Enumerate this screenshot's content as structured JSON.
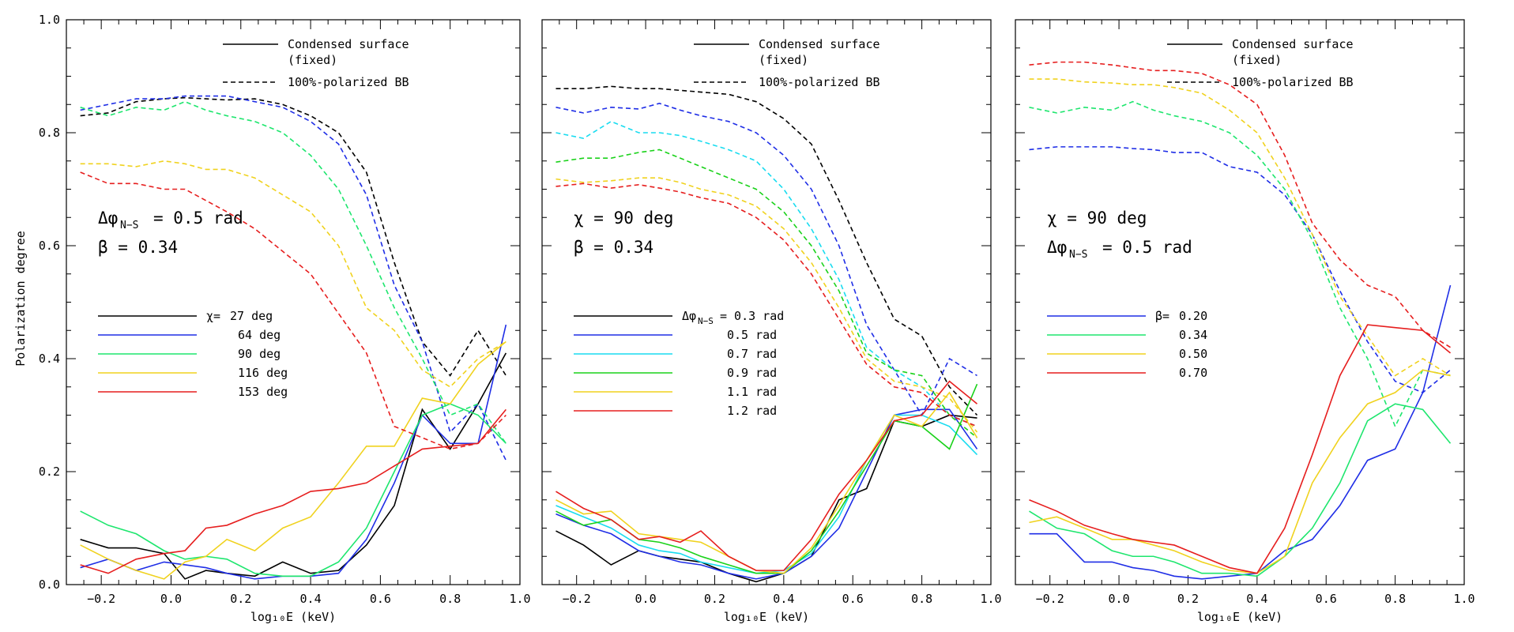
{
  "ylabel": "Polarization degree",
  "colors": {
    "black": "#000000",
    "blue": "#1f2ee6",
    "cyan": "#19dcf0",
    "green": "#1ee66e",
    "green2": "#1ad21a",
    "yellow": "#f0d21e",
    "red": "#e61e1e"
  },
  "chart_data": [
    {
      "type": "line",
      "panel": 1,
      "xlabel": "log₁₀E (keV)",
      "ylabel": "Polarization degree",
      "xlim": [
        -0.3,
        1.0
      ],
      "ylim": [
        0.0,
        1.0
      ],
      "xticks": [
        "−0.2",
        "0.0",
        "0.2",
        "0.4",
        "0.6",
        "0.8",
        "1.0"
      ],
      "yticks": [
        "0.0",
        "0.2",
        "0.4",
        "0.6",
        "0.8",
        "1.0"
      ],
      "legend_top": [
        "Condensed surface",
        "(fixed)",
        "100%-polarized BB"
      ],
      "annotations": [
        "Δφ",
        "N−S",
        "=  0.5 rad",
        "β =  0.34"
      ],
      "legend_prefix": "χ=",
      "legend": [
        "27 deg",
        "64 deg",
        "90 deg",
        "116 deg",
        "153 deg"
      ],
      "x": [
        -0.26,
        -0.18,
        -0.1,
        -0.02,
        0.04,
        0.1,
        0.16,
        0.24,
        0.32,
        0.4,
        0.48,
        0.56,
        0.64,
        0.72,
        0.8,
        0.88,
        0.96
      ],
      "series": [
        {
          "name": "27 deg",
          "color": "#000000",
          "solid": [
            0.08,
            0.065,
            0.065,
            0.055,
            0.01,
            0.025,
            0.02,
            0.015,
            0.04,
            0.02,
            0.025,
            0.07,
            0.14,
            0.31,
            0.24,
            0.32,
            0.41
          ],
          "dashed": [
            0.83,
            0.835,
            0.855,
            0.86,
            0.862,
            0.86,
            0.858,
            0.86,
            0.85,
            0.83,
            0.8,
            0.73,
            0.57,
            0.43,
            0.37,
            0.45,
            0.37
          ]
        },
        {
          "name": "64 deg",
          "color": "#1f2ee6",
          "solid": [
            0.03,
            0.045,
            0.025,
            0.04,
            0.035,
            0.03,
            0.02,
            0.01,
            0.015,
            0.015,
            0.02,
            0.08,
            0.18,
            0.3,
            0.25,
            0.25,
            0.46
          ],
          "dashed": [
            0.84,
            0.85,
            0.86,
            0.86,
            0.865,
            0.865,
            0.865,
            0.855,
            0.845,
            0.82,
            0.78,
            0.69,
            0.53,
            0.43,
            0.27,
            0.32,
            0.22
          ]
        },
        {
          "name": "90 deg",
          "color": "#1ee66e",
          "solid": [
            0.13,
            0.105,
            0.09,
            0.06,
            0.045,
            0.05,
            0.045,
            0.02,
            0.015,
            0.015,
            0.04,
            0.1,
            0.2,
            0.3,
            0.32,
            0.3,
            0.25
          ],
          "dashed": [
            0.845,
            0.83,
            0.845,
            0.84,
            0.855,
            0.84,
            0.83,
            0.82,
            0.8,
            0.76,
            0.7,
            0.6,
            0.49,
            0.4,
            0.3,
            0.32,
            0.25
          ]
        },
        {
          "name": "116 deg",
          "color": "#f0d21e",
          "solid": [
            0.07,
            0.045,
            0.025,
            0.01,
            0.04,
            0.05,
            0.08,
            0.06,
            0.1,
            0.12,
            0.18,
            0.245,
            0.245,
            0.33,
            0.32,
            0.39,
            0.43
          ],
          "dashed": [
            0.745,
            0.745,
            0.74,
            0.75,
            0.745,
            0.735,
            0.735,
            0.72,
            0.69,
            0.66,
            0.6,
            0.49,
            0.45,
            0.38,
            0.35,
            0.4,
            0.43
          ]
        },
        {
          "name": "153 deg",
          "color": "#e61e1e",
          "solid": [
            0.035,
            0.02,
            0.045,
            0.055,
            0.06,
            0.1,
            0.105,
            0.125,
            0.14,
            0.165,
            0.17,
            0.18,
            0.21,
            0.24,
            0.245,
            0.25,
            0.31
          ],
          "dashed": [
            0.73,
            0.71,
            0.71,
            0.7,
            0.7,
            0.68,
            0.66,
            0.63,
            0.59,
            0.55,
            0.48,
            0.41,
            0.28,
            0.26,
            0.24,
            0.25,
            0.3
          ]
        }
      ]
    },
    {
      "type": "line",
      "panel": 2,
      "xlabel": "log₁₀E (keV)",
      "xlim": [
        -0.3,
        1.0
      ],
      "ylim": [
        0.0,
        1.0
      ],
      "xticks": [
        "−0.2",
        "0.0",
        "0.2",
        "0.4",
        "0.6",
        "0.8",
        "1.0"
      ],
      "legend_top": [
        "Condensed surface",
        "(fixed)",
        "100%-polarized BB"
      ],
      "annotations": [
        "χ =    90 deg",
        "β =  0.34"
      ],
      "legend_prefix": "Δφ",
      "legend_prefix_sub": "N−S",
      "legend": [
        "= 0.3 rad",
        "0.5 rad",
        "0.7 rad",
        "0.9 rad",
        "1.1 rad",
        "1.2 rad"
      ],
      "x": [
        -0.26,
        -0.18,
        -0.1,
        -0.02,
        0.04,
        0.1,
        0.16,
        0.24,
        0.32,
        0.4,
        0.48,
        0.56,
        0.64,
        0.72,
        0.8,
        0.88,
        0.96
      ],
      "series": [
        {
          "name": "0.3 rad",
          "color": "#000000",
          "solid": [
            0.095,
            0.07,
            0.035,
            0.06,
            0.05,
            0.045,
            0.04,
            0.02,
            0.005,
            0.02,
            0.05,
            0.15,
            0.17,
            0.29,
            0.28,
            0.3,
            0.295
          ],
          "dashed": [
            0.878,
            0.878,
            0.882,
            0.878,
            0.878,
            0.875,
            0.872,
            0.868,
            0.855,
            0.825,
            0.78,
            0.68,
            0.57,
            0.47,
            0.44,
            0.35,
            0.3
          ]
        },
        {
          "name": "0.5 rad",
          "color": "#1f2ee6",
          "solid": [
            0.125,
            0.105,
            0.09,
            0.06,
            0.05,
            0.04,
            0.035,
            0.02,
            0.01,
            0.02,
            0.05,
            0.1,
            0.2,
            0.3,
            0.31,
            0.31,
            0.24
          ],
          "dashed": [
            0.845,
            0.835,
            0.845,
            0.842,
            0.852,
            0.84,
            0.83,
            0.82,
            0.8,
            0.76,
            0.7,
            0.6,
            0.46,
            0.38,
            0.3,
            0.4,
            0.37
          ]
        },
        {
          "name": "0.7 rad",
          "color": "#19dcf0",
          "solid": [
            0.14,
            0.12,
            0.1,
            0.07,
            0.06,
            0.055,
            0.04,
            0.03,
            0.02,
            0.025,
            0.055,
            0.12,
            0.22,
            0.3,
            0.3,
            0.28,
            0.23
          ],
          "dashed": [
            0.8,
            0.79,
            0.82,
            0.8,
            0.8,
            0.795,
            0.785,
            0.77,
            0.75,
            0.7,
            0.63,
            0.54,
            0.42,
            0.38,
            0.35,
            0.3,
            0.28
          ]
        },
        {
          "name": "0.9 rad",
          "color": "#1ad21a",
          "solid": [
            0.13,
            0.105,
            0.115,
            0.08,
            0.075,
            0.065,
            0.05,
            0.035,
            0.02,
            0.02,
            0.06,
            0.13,
            0.21,
            0.29,
            0.28,
            0.24,
            0.355
          ],
          "dashed": [
            0.748,
            0.755,
            0.755,
            0.765,
            0.77,
            0.755,
            0.74,
            0.72,
            0.7,
            0.66,
            0.6,
            0.52,
            0.41,
            0.38,
            0.37,
            0.3,
            0.26
          ]
        },
        {
          "name": "1.1 rad",
          "color": "#f0d21e",
          "solid": [
            0.15,
            0.125,
            0.13,
            0.09,
            0.085,
            0.08,
            0.075,
            0.05,
            0.025,
            0.02,
            0.065,
            0.14,
            0.22,
            0.3,
            0.28,
            0.34,
            0.26
          ],
          "dashed": [
            0.718,
            0.712,
            0.715,
            0.72,
            0.72,
            0.712,
            0.7,
            0.69,
            0.67,
            0.63,
            0.57,
            0.49,
            0.4,
            0.36,
            0.35,
            0.33,
            0.27
          ]
        },
        {
          "name": "1.2 rad",
          "color": "#e61e1e",
          "solid": [
            0.165,
            0.135,
            0.115,
            0.08,
            0.085,
            0.075,
            0.095,
            0.05,
            0.025,
            0.025,
            0.08,
            0.16,
            0.22,
            0.29,
            0.3,
            0.36,
            0.32
          ],
          "dashed": [
            0.705,
            0.71,
            0.702,
            0.708,
            0.702,
            0.695,
            0.685,
            0.675,
            0.65,
            0.61,
            0.55,
            0.47,
            0.39,
            0.35,
            0.34,
            0.3,
            0.28
          ]
        }
      ]
    },
    {
      "type": "line",
      "panel": 3,
      "xlabel": "log₁₀E (keV)",
      "xlim": [
        -0.3,
        1.0
      ],
      "ylim": [
        0.0,
        1.0
      ],
      "xticks": [
        "−0.2",
        "0.0",
        "0.2",
        "0.4",
        "0.6",
        "0.8",
        "1.0"
      ],
      "legend_top": [
        "Condensed surface",
        "(fixed)",
        "100%-polarized BB"
      ],
      "annotations": [
        "χ =    90 deg",
        "Δφ",
        "N−S",
        "=  0.5 rad"
      ],
      "legend_prefix": "β=",
      "legend": [
        "0.20",
        "0.34",
        "0.50",
        "0.70"
      ],
      "x": [
        -0.26,
        -0.18,
        -0.1,
        -0.02,
        0.04,
        0.1,
        0.16,
        0.24,
        0.32,
        0.4,
        0.48,
        0.56,
        0.64,
        0.72,
        0.8,
        0.88,
        0.96
      ],
      "series": [
        {
          "name": "0.20",
          "color": "#1f2ee6",
          "solid": [
            0.09,
            0.09,
            0.04,
            0.04,
            0.03,
            0.025,
            0.015,
            0.01,
            0.015,
            0.02,
            0.06,
            0.08,
            0.14,
            0.22,
            0.24,
            0.34,
            0.53
          ],
          "dashed": [
            0.77,
            0.775,
            0.775,
            0.775,
            0.772,
            0.77,
            0.765,
            0.765,
            0.74,
            0.73,
            0.69,
            0.62,
            0.52,
            0.43,
            0.36,
            0.34,
            0.38
          ]
        },
        {
          "name": "0.34",
          "color": "#1ee66e",
          "solid": [
            0.13,
            0.1,
            0.09,
            0.06,
            0.05,
            0.05,
            0.04,
            0.02,
            0.02,
            0.015,
            0.05,
            0.1,
            0.18,
            0.29,
            0.32,
            0.31,
            0.25
          ],
          "dashed": [
            0.845,
            0.835,
            0.845,
            0.84,
            0.855,
            0.84,
            0.83,
            0.82,
            0.8,
            0.76,
            0.7,
            0.61,
            0.49,
            0.4,
            0.28,
            0.38,
            0.37
          ]
        },
        {
          "name": "0.50",
          "color": "#f0d21e",
          "solid": [
            0.11,
            0.12,
            0.1,
            0.08,
            0.08,
            0.07,
            0.06,
            0.04,
            0.025,
            0.02,
            0.05,
            0.18,
            0.26,
            0.32,
            0.34,
            0.38,
            0.37
          ],
          "dashed": [
            0.895,
            0.895,
            0.89,
            0.888,
            0.885,
            0.885,
            0.88,
            0.87,
            0.84,
            0.8,
            0.72,
            0.62,
            0.51,
            0.44,
            0.37,
            0.4,
            0.37
          ]
        },
        {
          "name": "0.70",
          "color": "#e61e1e",
          "solid": [
            0.15,
            0.13,
            0.105,
            0.09,
            0.08,
            0.075,
            0.07,
            0.05,
            0.03,
            0.02,
            0.1,
            0.23,
            0.37,
            0.46,
            0.455,
            0.45,
            0.41
          ],
          "dashed": [
            0.92,
            0.925,
            0.925,
            0.92,
            0.915,
            0.91,
            0.91,
            0.905,
            0.885,
            0.85,
            0.76,
            0.64,
            0.575,
            0.53,
            0.51,
            0.45,
            0.42
          ]
        }
      ]
    }
  ]
}
